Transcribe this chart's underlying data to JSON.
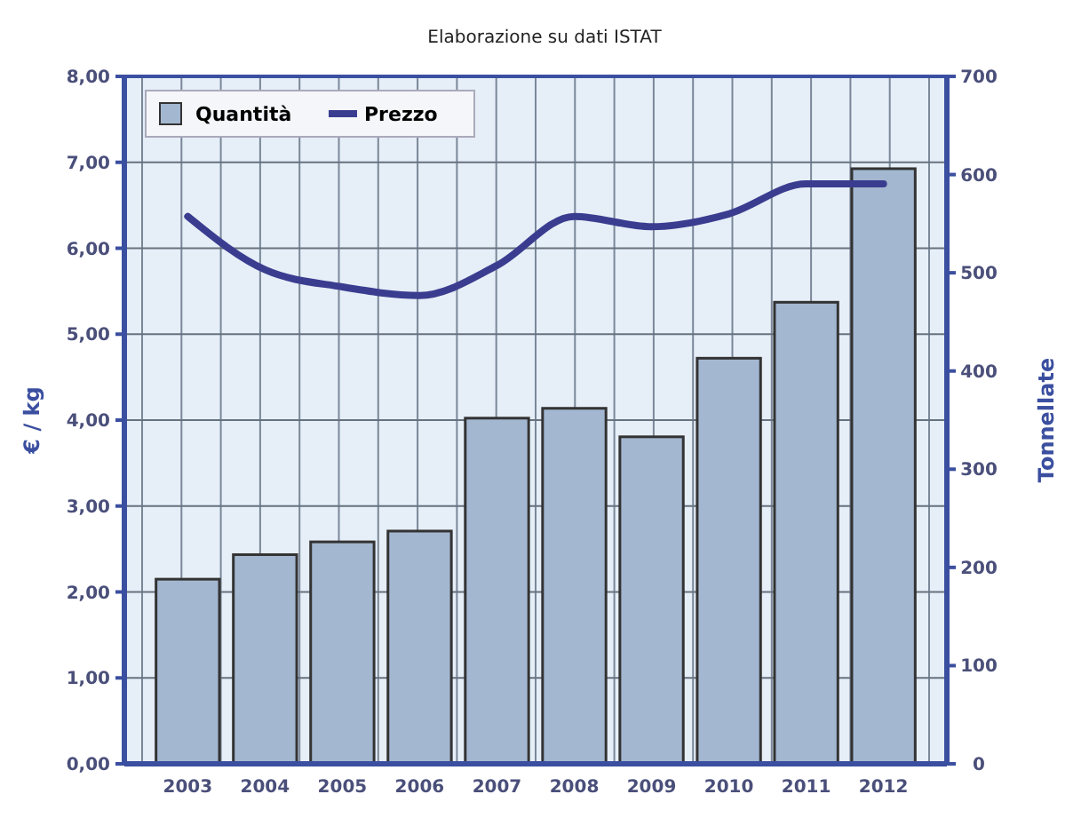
{
  "chart_data": {
    "type": "bar",
    "subtitle": "Elaborazione su dati ISTAT",
    "ylabel": "€ / kg",
    "y2label": "Tonnellate",
    "categories": [
      "2003",
      "2004",
      "2005",
      "2006",
      "2007",
      "2008",
      "2009",
      "2010",
      "2011",
      "2012"
    ],
    "series": [
      {
        "name": "Quantità",
        "axis": "y2",
        "color": "#a3b7d1",
        "values": [
          188,
          213,
          226,
          237,
          352,
          362,
          333,
          413,
          470,
          606
        ]
      },
      {
        "name": "Prezzo",
        "type": "line",
        "axis": "y",
        "color": "#3a3d8f",
        "values": [
          6.37,
          5.75,
          5.55,
          5.45,
          5.8,
          6.37,
          6.25,
          6.4,
          6.75,
          6.75
        ]
      }
    ],
    "ylim": [
      0,
      8
    ],
    "yticks": [
      {
        "value": 0,
        "label": "0,00"
      },
      {
        "value": 1,
        "label": "1,00"
      },
      {
        "value": 2,
        "label": "2,00"
      },
      {
        "value": 3,
        "label": "3,00"
      },
      {
        "value": 4,
        "label": "4,00"
      },
      {
        "value": 5,
        "label": "5,00"
      },
      {
        "value": 6,
        "label": "6,00"
      },
      {
        "value": 7,
        "label": "7,00"
      },
      {
        "value": 8,
        "label": "8,00"
      }
    ],
    "y2lim": [
      0,
      700
    ],
    "y2ticks": [
      0,
      100,
      200,
      300,
      400,
      500,
      600,
      700
    ],
    "grid": true,
    "legend": "top left"
  }
}
